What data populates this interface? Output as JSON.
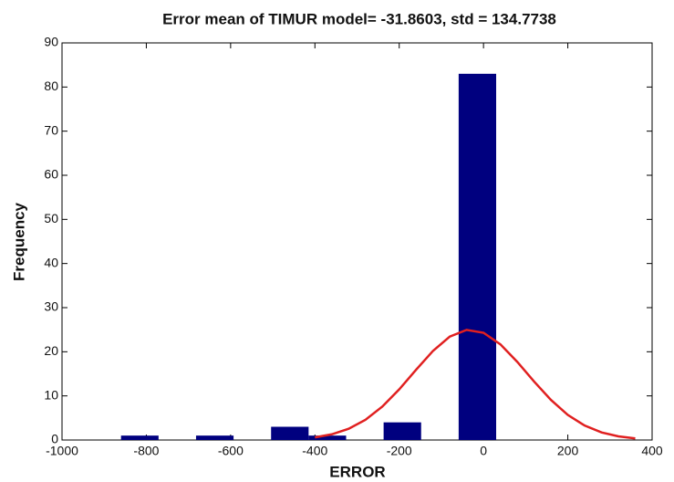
{
  "chart_data": {
    "type": "histogram",
    "title": "Error mean of TIMUR model= -31.8603, std = 134.7738",
    "xlabel": "ERROR",
    "ylabel": "Frequency",
    "bins": [
      -860,
      -771,
      -682,
      -593,
      -504,
      -415,
      -326,
      -237,
      -148,
      -59,
      30
    ],
    "values": [
      1,
      0,
      1,
      0,
      3,
      1,
      0,
      4,
      0,
      83
    ],
    "color": "#00007f",
    "line": {
      "color": "#e02020",
      "x": [
        -400,
        -360,
        -320,
        -280,
        -240,
        -200,
        -160,
        -120,
        -80,
        -40,
        0,
        40,
        80,
        120,
        160,
        200,
        240,
        280,
        320,
        360
      ],
      "values": [
        0.6,
        1.29,
        2.55,
        4.59,
        7.59,
        11.48,
        15.91,
        20.18,
        23.45,
        24.96,
        24.31,
        21.69,
        17.72,
        13.25,
        9.08,
        5.69,
        3.27,
        1.72,
        0.83,
        0.36
      ]
    },
    "xlim": [
      -1000,
      400
    ],
    "xticks": [
      -1000,
      -800,
      -600,
      -400,
      -200,
      0,
      200,
      400
    ],
    "ylim": [
      0,
      90
    ],
    "yticks": [
      0,
      10,
      20,
      30,
      40,
      50,
      60,
      70,
      80,
      90
    ]
  }
}
